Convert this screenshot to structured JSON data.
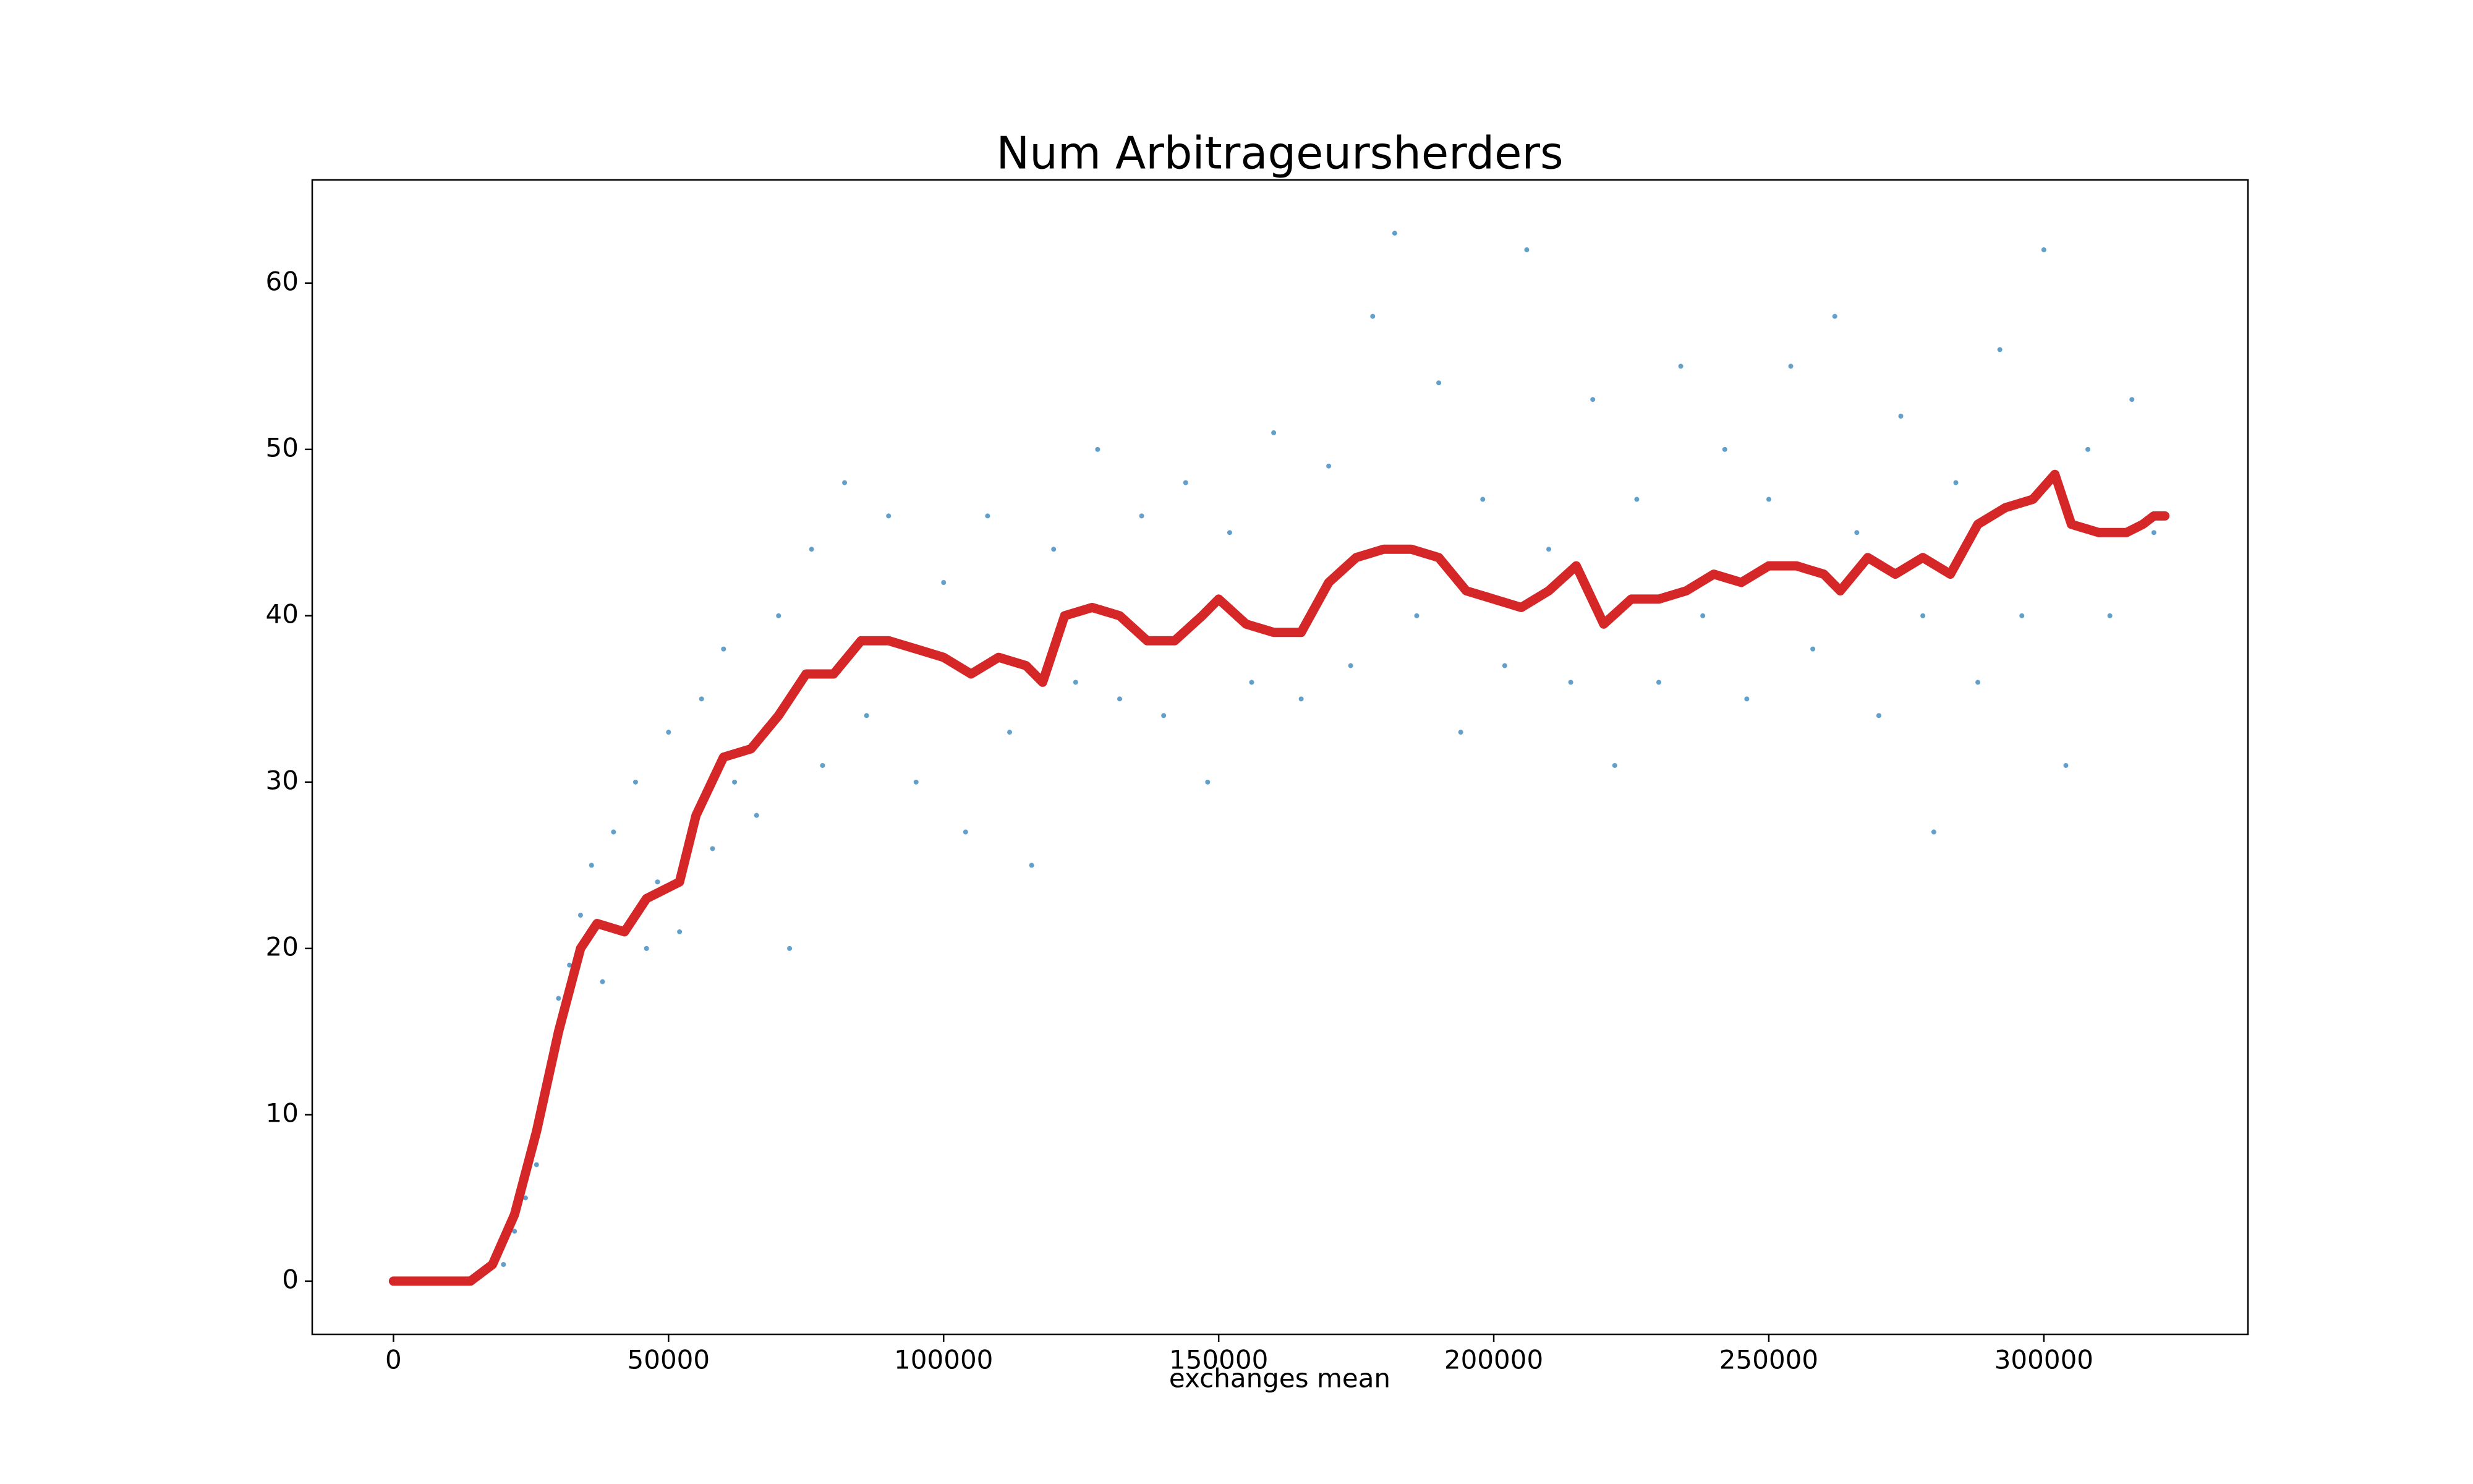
{
  "chart_data": {
    "type": "scatter",
    "title": "Num Arbitrageursherders",
    "x_label": "exchanges mean",
    "xlim": [
      -14770,
      337100
    ],
    "ylim": [
      -3.2,
      66.2
    ],
    "xticks": [
      0,
      50000,
      100000,
      150000,
      200000,
      250000,
      300000
    ],
    "yticks": [
      0,
      10,
      20,
      30,
      40,
      50,
      60
    ],
    "grid": false,
    "series": [
      {
        "type": "scatter",
        "color": "#1f77b4",
        "x": [
          20000,
          22000,
          24000,
          26000,
          28000,
          30000,
          32000,
          34000,
          36000,
          38000,
          40000,
          44000,
          46000,
          48000,
          50000,
          52000,
          56000,
          58000,
          60000,
          62000,
          66000,
          70000,
          72000,
          76000,
          78000,
          82000,
          86000,
          90000,
          95000,
          100000,
          104000,
          108000,
          112000,
          116000,
          120000,
          124000,
          128000,
          132000,
          136000,
          140000,
          144000,
          148000,
          152000,
          156000,
          160000,
          165000,
          170000,
          174000,
          178000,
          182000,
          186000,
          190000,
          194000,
          198000,
          202000,
          206000,
          210000,
          214000,
          218000,
          222000,
          226000,
          230000,
          234000,
          238000,
          242000,
          246000,
          250000,
          254000,
          258000,
          262000,
          266000,
          270000,
          274000,
          278000,
          280000,
          284000,
          288000,
          292000,
          296000,
          300000,
          304000,
          308000,
          312000,
          316000,
          320000
        ],
        "values": [
          1,
          3,
          5,
          7,
          12,
          17,
          19,
          22,
          25,
          18,
          27,
          30,
          20,
          24,
          33,
          21,
          35,
          26,
          38,
          30,
          28,
          40,
          20,
          44,
          31,
          48,
          34,
          46,
          30,
          42,
          27,
          46,
          33,
          25,
          44,
          36,
          50,
          35,
          46,
          34,
          48,
          30,
          45,
          36,
          51,
          35,
          49,
          37,
          58,
          63,
          40,
          54,
          33,
          47,
          37,
          62,
          44,
          36,
          53,
          31,
          47,
          36,
          55,
          40,
          50,
          35,
          47,
          55,
          38,
          58,
          45,
          34,
          52,
          40,
          27,
          48,
          36,
          56,
          40,
          62,
          31,
          50,
          40,
          53,
          45
        ]
      },
      {
        "type": "line",
        "color": "#d62728",
        "x": [
          0,
          14000,
          18000,
          22000,
          26000,
          30000,
          34000,
          37000,
          42000,
          46000,
          52000,
          55000,
          60000,
          65000,
          70000,
          75000,
          80000,
          85000,
          90000,
          95000,
          100000,
          105000,
          110000,
          115000,
          118000,
          122000,
          127000,
          132000,
          137000,
          142000,
          147000,
          150000,
          155000,
          160000,
          165000,
          170000,
          175000,
          180000,
          185000,
          190000,
          195000,
          200000,
          205000,
          210000,
          215000,
          220000,
          225000,
          230000,
          235000,
          240000,
          245000,
          250000,
          255000,
          260000,
          263000,
          268000,
          273000,
          278000,
          283000,
          288000,
          293000,
          298000,
          302000,
          305000,
          310000,
          315000,
          318000,
          320000,
          322000
        ],
        "values": [
          0,
          0,
          1,
          4,
          9,
          15,
          20,
          21.5,
          21,
          23,
          24,
          28,
          31.5,
          32,
          34,
          36.5,
          36.5,
          38.5,
          38.5,
          38,
          37.5,
          36.5,
          37.5,
          37,
          36,
          40,
          40.5,
          40,
          38.5,
          38.5,
          40,
          41,
          39.5,
          39,
          39,
          42,
          43.5,
          44,
          44,
          43.5,
          41.5,
          41,
          40.5,
          41.5,
          43,
          39.5,
          41,
          41,
          41.5,
          42.5,
          42,
          43,
          43,
          42.5,
          41.5,
          43.5,
          42.5,
          43.5,
          42.5,
          45.5,
          46.5,
          47,
          48.5,
          45.5,
          45,
          45,
          45.5,
          46,
          46
        ]
      }
    ]
  }
}
